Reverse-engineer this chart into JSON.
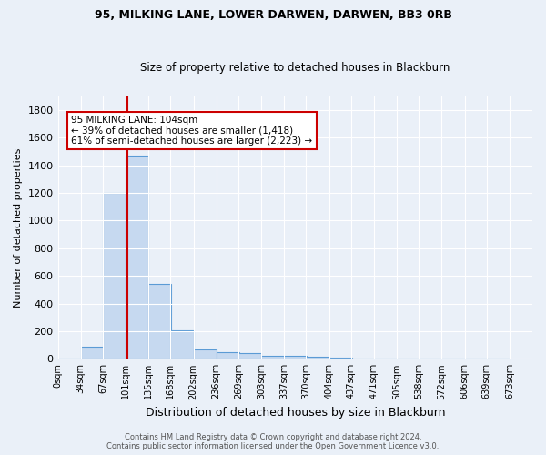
{
  "title1": "95, MILKING LANE, LOWER DARWEN, DARWEN, BB3 0RB",
  "title2": "Size of property relative to detached houses in Blackburn",
  "xlabel": "Distribution of detached houses by size in Blackburn",
  "ylabel": "Number of detached properties",
  "bin_labels": [
    "0sqm",
    "34sqm",
    "67sqm",
    "101sqm",
    "135sqm",
    "168sqm",
    "202sqm",
    "236sqm",
    "269sqm",
    "303sqm",
    "337sqm",
    "370sqm",
    "404sqm",
    "437sqm",
    "471sqm",
    "505sqm",
    "538sqm",
    "572sqm",
    "606sqm",
    "639sqm",
    "673sqm"
  ],
  "bin_edges": [
    0,
    34,
    67,
    101,
    135,
    168,
    202,
    236,
    269,
    303,
    337,
    370,
    404,
    437,
    471,
    505,
    538,
    572,
    606,
    639,
    673
  ],
  "bar_heights": [
    0,
    90,
    1200,
    1470,
    540,
    205,
    65,
    50,
    40,
    25,
    25,
    15,
    10,
    0,
    0,
    0,
    0,
    0,
    0,
    0
  ],
  "bar_color": "#c6d9f0",
  "bar_edge_color": "#5b9bd5",
  "bg_color": "#eaf0f8",
  "grid_color": "#ffffff",
  "vline_x": 104,
  "vline_color": "#cc0000",
  "annotation_line1": "95 MILKING LANE: 104sqm",
  "annotation_line2": "← 39% of detached houses are smaller (1,418)",
  "annotation_line3": "61% of semi-detached houses are larger (2,223) →",
  "footer_line1": "Contains HM Land Registry data © Crown copyright and database right 2024.",
  "footer_line2": "Contains public sector information licensed under the Open Government Licence v3.0.",
  "ylim": [
    0,
    1900
  ],
  "yticks": [
    0,
    200,
    400,
    600,
    800,
    1000,
    1200,
    1400,
    1600,
    1800
  ]
}
